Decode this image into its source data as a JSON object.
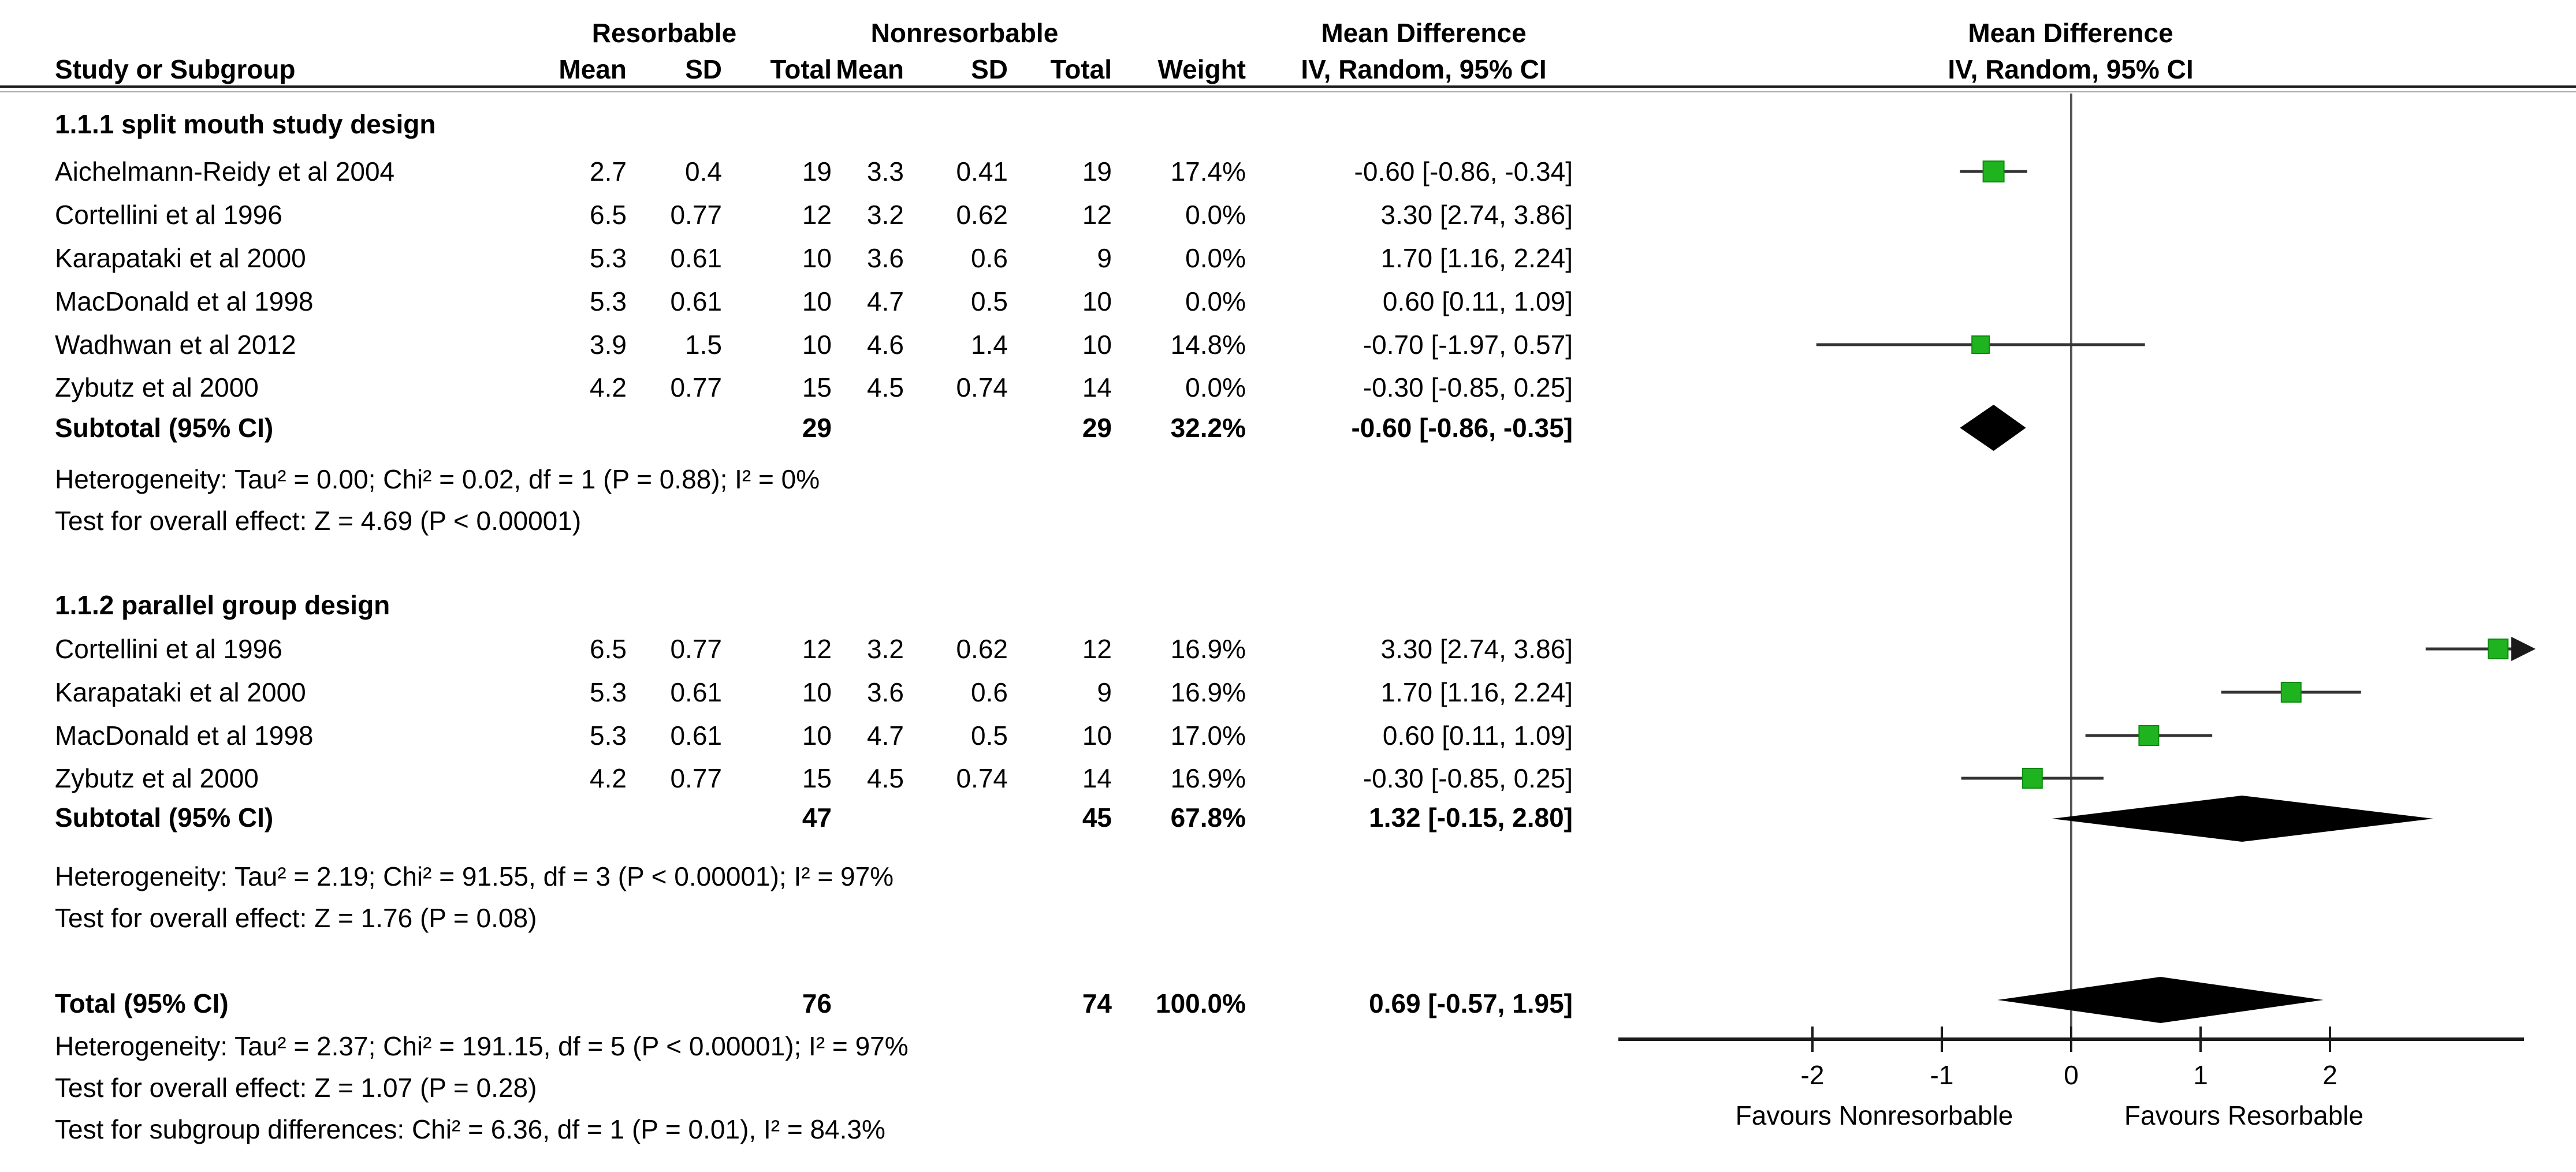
{
  "header": {
    "group_resorbable": "Resorbable",
    "group_nonresorbable": "Nonresorbable",
    "md_column_title": "Mean Difference",
    "md_column_sub": "IV, Random, 95% CI",
    "plot_title": "Mean Difference",
    "plot_sub": "IV, Random, 95% CI",
    "study": "Study or Subgroup",
    "mean": "Mean",
    "sd": "SD",
    "total": "Total",
    "weight": "Weight"
  },
  "sections": [
    {
      "title": "1.1.1 split mouth study design",
      "rows": [
        {
          "study": "Aichelmann-Reidy et al 2004",
          "mean_r": "2.7",
          "sd_r": "0.4",
          "total_r": "19",
          "mean_n": "3.3",
          "sd_n": "0.41",
          "total_n": "19",
          "weight": "17.4%",
          "ci_text": "-0.60 [-0.86, -0.34]",
          "est": -0.6,
          "lo": -0.86,
          "hi": -0.34
        },
        {
          "study": "Cortellini et al 1996",
          "mean_r": "6.5",
          "sd_r": "0.77",
          "total_r": "12",
          "mean_n": "3.2",
          "sd_n": "0.62",
          "total_n": "12",
          "weight": "0.0%",
          "ci_text": "3.30 [2.74, 3.86]",
          "est": 3.3,
          "lo": 2.74,
          "hi": 3.86
        },
        {
          "study": "Karapataki et al 2000",
          "mean_r": "5.3",
          "sd_r": "0.61",
          "total_r": "10",
          "mean_n": "3.6",
          "sd_n": "0.6",
          "total_n": "9",
          "weight": "0.0%",
          "ci_text": "1.70 [1.16, 2.24]",
          "est": 1.7,
          "lo": 1.16,
          "hi": 2.24
        },
        {
          "study": "MacDonald et al 1998",
          "mean_r": "5.3",
          "sd_r": "0.61",
          "total_r": "10",
          "mean_n": "4.7",
          "sd_n": "0.5",
          "total_n": "10",
          "weight": "0.0%",
          "ci_text": "0.60 [0.11, 1.09]",
          "est": 0.6,
          "lo": 0.11,
          "hi": 1.09
        },
        {
          "study": "Wadhwan et al 2012",
          "mean_r": "3.9",
          "sd_r": "1.5",
          "total_r": "10",
          "mean_n": "4.6",
          "sd_n": "1.4",
          "total_n": "10",
          "weight": "14.8%",
          "ci_text": "-0.70 [-1.97, 0.57]",
          "est": -0.7,
          "lo": -1.97,
          "hi": 0.57
        },
        {
          "study": "Zybutz et al 2000",
          "mean_r": "4.2",
          "sd_r": "0.77",
          "total_r": "15",
          "mean_n": "4.5",
          "sd_n": "0.74",
          "total_n": "14",
          "weight": "0.0%",
          "ci_text": "-0.30 [-0.85, 0.25]",
          "est": -0.3,
          "lo": -0.85,
          "hi": 0.25
        }
      ],
      "subtotal": {
        "label": "Subtotal (95% CI)",
        "total_r": "29",
        "total_n": "29",
        "weight": "32.2%",
        "ci_text": "-0.60 [-0.86, -0.35]",
        "est": -0.6,
        "lo": -0.86,
        "hi": -0.35
      },
      "heterogeneity": "Heterogeneity: Tau² = 0.00; Chi² = 0.02, df = 1 (P = 0.88); I² = 0%",
      "overall_effect": "Test for overall effect: Z = 4.69 (P < 0.00001)"
    },
    {
      "title": "1.1.2 parallel group design",
      "rows": [
        {
          "study": "Cortellini et al 1996",
          "mean_r": "6.5",
          "sd_r": "0.77",
          "total_r": "12",
          "mean_n": "3.2",
          "sd_n": "0.62",
          "total_n": "12",
          "weight": "16.9%",
          "ci_text": "3.30 [2.74, 3.86]",
          "est": 3.3,
          "lo": 2.74,
          "hi": 3.86
        },
        {
          "study": "Karapataki et al 2000",
          "mean_r": "5.3",
          "sd_r": "0.61",
          "total_r": "10",
          "mean_n": "3.6",
          "sd_n": "0.6",
          "total_n": "9",
          "weight": "16.9%",
          "ci_text": "1.70 [1.16, 2.24]",
          "est": 1.7,
          "lo": 1.16,
          "hi": 2.24
        },
        {
          "study": "MacDonald et al 1998",
          "mean_r": "5.3",
          "sd_r": "0.61",
          "total_r": "10",
          "mean_n": "4.7",
          "sd_n": "0.5",
          "total_n": "10",
          "weight": "17.0%",
          "ci_text": "0.60 [0.11, 1.09]",
          "est": 0.6,
          "lo": 0.11,
          "hi": 1.09
        },
        {
          "study": "Zybutz et al 2000",
          "mean_r": "4.2",
          "sd_r": "0.77",
          "total_r": "15",
          "mean_n": "4.5",
          "sd_n": "0.74",
          "total_n": "14",
          "weight": "16.9%",
          "ci_text": "-0.30 [-0.85, 0.25]",
          "est": -0.3,
          "lo": -0.85,
          "hi": 0.25
        }
      ],
      "subtotal": {
        "label": "Subtotal (95% CI)",
        "total_r": "47",
        "total_n": "45",
        "weight": "67.8%",
        "ci_text": "1.32 [-0.15, 2.80]",
        "est": 1.32,
        "lo": -0.15,
        "hi": 2.8
      },
      "heterogeneity": "Heterogeneity: Tau² = 2.19; Chi² = 91.55, df = 3 (P < 0.00001); I² = 97%",
      "overall_effect": "Test for overall effect: Z = 1.76 (P = 0.08)"
    }
  ],
  "total": {
    "label": "Total (95% CI)",
    "total_r": "76",
    "total_n": "74",
    "weight": "100.0%",
    "ci_text": "0.69 [-0.57, 1.95]",
    "est": 0.69,
    "lo": -0.57,
    "hi": 1.95,
    "heterogeneity": "Heterogeneity: Tau² = 2.37; Chi² = 191.15, df = 5 (P < 0.00001); I² = 97%",
    "overall_effect": "Test for overall effect: Z = 1.07 (P = 0.28)",
    "subgroup_differences": "Test for subgroup differences: Chi² = 6.36, df = 1 (P = 0.01), I² = 84.3%"
  },
  "axis": {
    "ticks": [
      "-2",
      "-1",
      "0",
      "1",
      "2"
    ],
    "tick_values": [
      -2,
      -1,
      0,
      1,
      2
    ],
    "xlim": [
      -3.5,
      3.5
    ],
    "favours_left": "Favours Nonresorbable",
    "favours_right": "Favours Resorbable"
  },
  "colors": {
    "marker_green": "#1fb41f",
    "marker_green_edge": "#0e8a0e",
    "diamond_black": "#000000",
    "line_dark": "#333333"
  },
  "chart_data": {
    "type": "scatter",
    "title": "Mean Difference IV, Random, 95% CI (forest plot)",
    "xlabel": "Mean Difference",
    "xlim": [
      -3.5,
      3.5
    ],
    "xticks": [
      -2,
      -1,
      0,
      1,
      2
    ],
    "favours_left": "Favours Nonresorbable",
    "favours_right": "Favours Resorbable",
    "grid": false,
    "studies": [
      {
        "subgroup": "1.1.1 split mouth study design",
        "name": "Aichelmann-Reidy et al 2004",
        "est": -0.6,
        "lo": -0.86,
        "hi": -0.34,
        "weight_pct": 17.4,
        "plotted": true
      },
      {
        "subgroup": "1.1.1 split mouth study design",
        "name": "Cortellini et al 1996",
        "est": 3.3,
        "lo": 2.74,
        "hi": 3.86,
        "weight_pct": 0.0,
        "plotted": false
      },
      {
        "subgroup": "1.1.1 split mouth study design",
        "name": "Karapataki et al 2000",
        "est": 1.7,
        "lo": 1.16,
        "hi": 2.24,
        "weight_pct": 0.0,
        "plotted": false
      },
      {
        "subgroup": "1.1.1 split mouth study design",
        "name": "MacDonald et al 1998",
        "est": 0.6,
        "lo": 0.11,
        "hi": 1.09,
        "weight_pct": 0.0,
        "plotted": false
      },
      {
        "subgroup": "1.1.1 split mouth study design",
        "name": "Wadhwan et al 2012",
        "est": -0.7,
        "lo": -1.97,
        "hi": 0.57,
        "weight_pct": 14.8,
        "plotted": true
      },
      {
        "subgroup": "1.1.1 split mouth study design",
        "name": "Zybutz et al 2000",
        "est": -0.3,
        "lo": -0.85,
        "hi": 0.25,
        "weight_pct": 0.0,
        "plotted": false
      },
      {
        "subgroup": "1.1.2 parallel group design",
        "name": "Cortellini et al 1996",
        "est": 3.3,
        "lo": 2.74,
        "hi": 3.86,
        "weight_pct": 16.9,
        "plotted": true,
        "arrow_right": true
      },
      {
        "subgroup": "1.1.2 parallel group design",
        "name": "Karapataki et al 2000",
        "est": 1.7,
        "lo": 1.16,
        "hi": 2.24,
        "weight_pct": 16.9,
        "plotted": true
      },
      {
        "subgroup": "1.1.2 parallel group design",
        "name": "MacDonald et al 1998",
        "est": 0.6,
        "lo": 0.11,
        "hi": 1.09,
        "weight_pct": 17.0,
        "plotted": true
      },
      {
        "subgroup": "1.1.2 parallel group design",
        "name": "Zybutz et al 2000",
        "est": -0.3,
        "lo": -0.85,
        "hi": 0.25,
        "weight_pct": 16.9,
        "plotted": true
      }
    ],
    "pooled": [
      {
        "label": "Subtotal 1.1.1 (95% CI)",
        "est": -0.6,
        "lo": -0.86,
        "hi": -0.35
      },
      {
        "label": "Subtotal 1.1.2 (95% CI)",
        "est": 1.32,
        "lo": -0.15,
        "hi": 2.8
      },
      {
        "label": "Total (95% CI)",
        "est": 0.69,
        "lo": -0.57,
        "hi": 1.95
      }
    ]
  }
}
